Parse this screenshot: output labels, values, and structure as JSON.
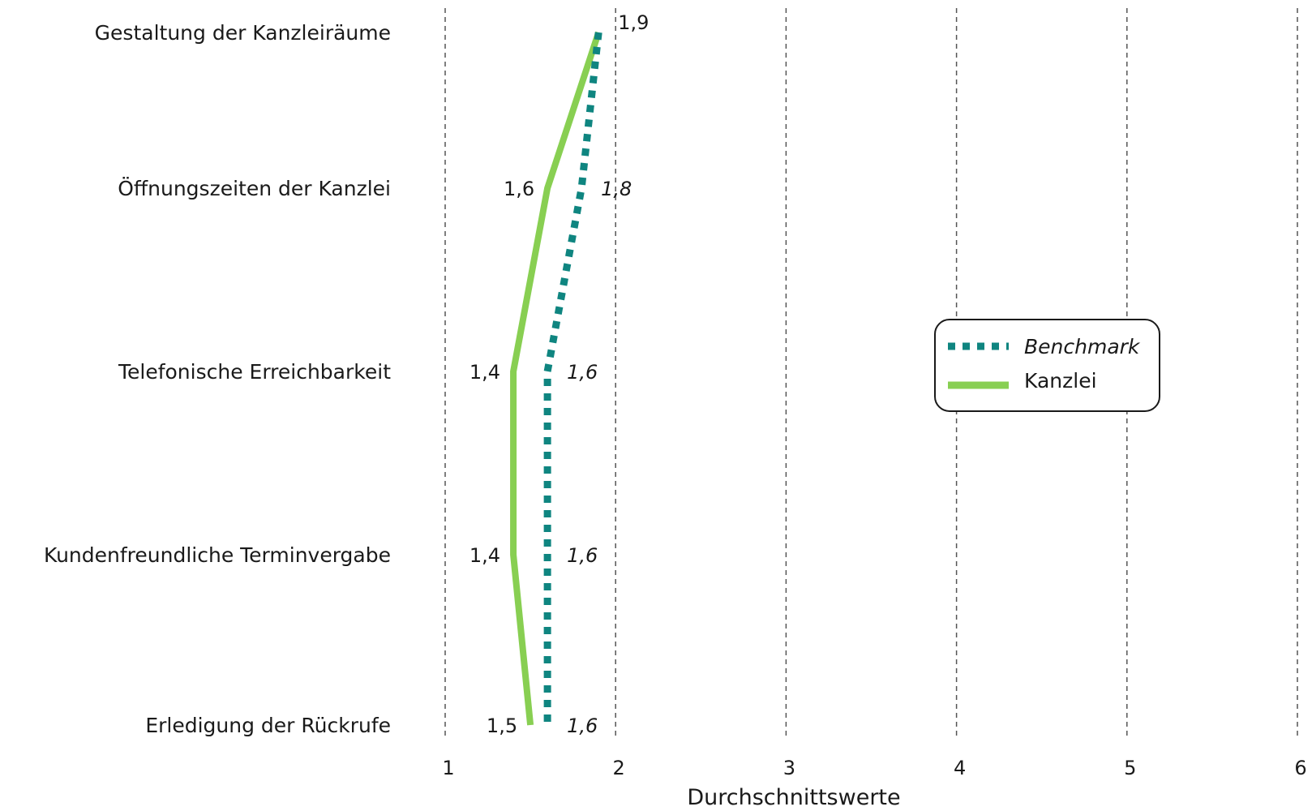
{
  "chart_data": {
    "type": "line",
    "orientation": "horizontal-values",
    "categories": [
      "Gestaltung der Kanzleiräume",
      "Öffnungszeiten der Kanzlei",
      "Telefonische Erreichbarkeit",
      "Kundenfreundliche Terminvergabe",
      "Erledigung der Rückrufe"
    ],
    "series": [
      {
        "name": "Benchmark",
        "values": [
          1.9,
          1.8,
          1.6,
          1.6,
          1.6
        ],
        "labels": [
          "1,9",
          "1,8",
          "1,6",
          "1,6",
          "1,6"
        ],
        "color": "#0f8580",
        "style": "dotted",
        "label_italic": true
      },
      {
        "name": "Kanzlei",
        "values": [
          1.9,
          1.6,
          1.4,
          1.4,
          1.5
        ],
        "labels": [
          "",
          "1,6",
          "1,4",
          "1,4",
          "1,5"
        ],
        "color": "#88cf52",
        "style": "solid",
        "label_italic": false
      }
    ],
    "title": "",
    "xlabel": "Durchschnittswerte",
    "xticks": [
      1,
      2,
      3,
      4,
      5,
      6
    ],
    "xtick_labels": [
      "1",
      "2",
      "3",
      "4",
      "5",
      "6"
    ],
    "xlim": [
      1,
      6
    ],
    "grid": "vertical dashed",
    "legend": {
      "position": "right"
    }
  }
}
